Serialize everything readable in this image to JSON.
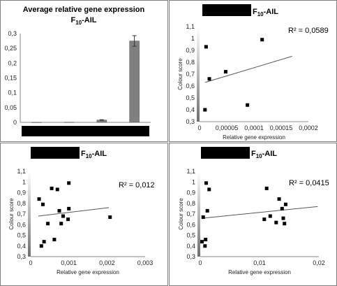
{
  "colors": {
    "bar": "#808080",
    "point": "#000000",
    "trend": "#555555",
    "axis": "#888888",
    "border": "#7f7f7f",
    "redaction": "#000000"
  },
  "chart_data": [
    {
      "type": "bar",
      "title": "Average relative gene expression",
      "title_strain": "F",
      "title_sub": "10",
      "title_suffix": "-AIL",
      "categories": [
        "",
        "",
        "",
        ""
      ],
      "values": [
        0.0005,
        0.0008,
        0.008,
        0.275
      ],
      "error": [
        0,
        0,
        0.001,
        0.018
      ],
      "ylim": [
        0,
        0.3
      ],
      "yticks": [
        "0",
        "0,05",
        "0,1",
        "0,15",
        "0,2",
        "0,25",
        "0,3"
      ],
      "xlabel": "",
      "ylabel": "",
      "category_label_redacted": true
    },
    {
      "type": "scatter",
      "title_strain": "F",
      "title_sub": "10",
      "title_suffix": "-AIL",
      "title_redacted": true,
      "r2_label": "R² = 0,0589",
      "xlabel": "Relative  gene expression",
      "ylabel": "Colour score",
      "xlim": [
        0,
        0.0002
      ],
      "ylim": [
        0.3,
        1.1
      ],
      "xticks": [
        "0",
        "0,00005",
        "0,0001",
        "0,00015",
        "0,0002"
      ],
      "yticks": [
        "0,3",
        "0,4",
        "0,5",
        "0,6",
        "0,7",
        "0,8",
        "0,9",
        "1",
        "1,1"
      ],
      "x": [
        1e-05,
        1.2e-05,
        1.8e-05,
        4.8e-05,
        8.8e-05,
        0.000115
      ],
      "y": [
        0.4,
        0.93,
        0.66,
        0.72,
        0.44,
        0.99
      ],
      "trend": [
        [
          1e-05,
          0.63
        ],
        [
          0.00017,
          0.85
        ]
      ]
    },
    {
      "type": "scatter",
      "title_strain": "F",
      "title_sub": "10",
      "title_suffix": "-AIL",
      "title_redacted": true,
      "r2_label": "R² = 0,012",
      "xlabel": "Relative  gene expression",
      "ylabel": "Colour score",
      "xlim": [
        0,
        0.003
      ],
      "ylim": [
        0.3,
        1.1
      ],
      "xticks": [
        "0",
        "0,001",
        "0,002",
        "0,003"
      ],
      "yticks": [
        "0,3",
        "0,4",
        "0,5",
        "0,6",
        "0,7",
        "0,8",
        "0,9",
        "1",
        "1,1"
      ],
      "x": [
        0.00022,
        0.00028,
        0.00032,
        0.00035,
        0.00045,
        0.00055,
        0.00062,
        0.0007,
        0.00075,
        0.0008,
        0.00085,
        0.00098,
        0.001,
        0.001,
        0.00208
      ],
      "y": [
        0.84,
        0.4,
        0.79,
        0.44,
        0.61,
        0.94,
        0.46,
        0.93,
        0.73,
        0.61,
        0.68,
        0.65,
        0.75,
        0.99,
        0.67
      ],
      "trend": [
        [
          0.0002,
          0.68
        ],
        [
          0.00205,
          0.76
        ]
      ]
    },
    {
      "type": "scatter",
      "title_strain": "F",
      "title_sub": "10",
      "title_suffix": "-AIL",
      "title_redacted": true,
      "r2_label": "R² = 0,0415",
      "xlabel": "Relative  gene expression",
      "ylabel": "Colour score",
      "xlim": [
        0,
        0.02
      ],
      "ylim": [
        0.3,
        1.1
      ],
      "xticks": [
        "0",
        "0,01",
        "0,02"
      ],
      "yticks": [
        "0,3",
        "0,4",
        "0,5",
        "0,6",
        "0,7",
        "0,8",
        "0,9",
        "1",
        "1,1"
      ],
      "x": [
        0.0003,
        0.0005,
        0.0008,
        0.0009,
        0.001,
        0.0012,
        0.0015,
        0.0108,
        0.0112,
        0.0118,
        0.0128,
        0.0133,
        0.0138,
        0.014,
        0.0142,
        0.0144
      ],
      "y": [
        0.44,
        0.67,
        0.4,
        0.46,
        0.99,
        0.73,
        0.93,
        0.65,
        0.94,
        0.68,
        0.62,
        0.84,
        0.75,
        0.66,
        0.61,
        0.79
      ],
      "trend": [
        [
          0.0003,
          0.66
        ],
        [
          0.0198,
          0.77
        ]
      ]
    }
  ]
}
